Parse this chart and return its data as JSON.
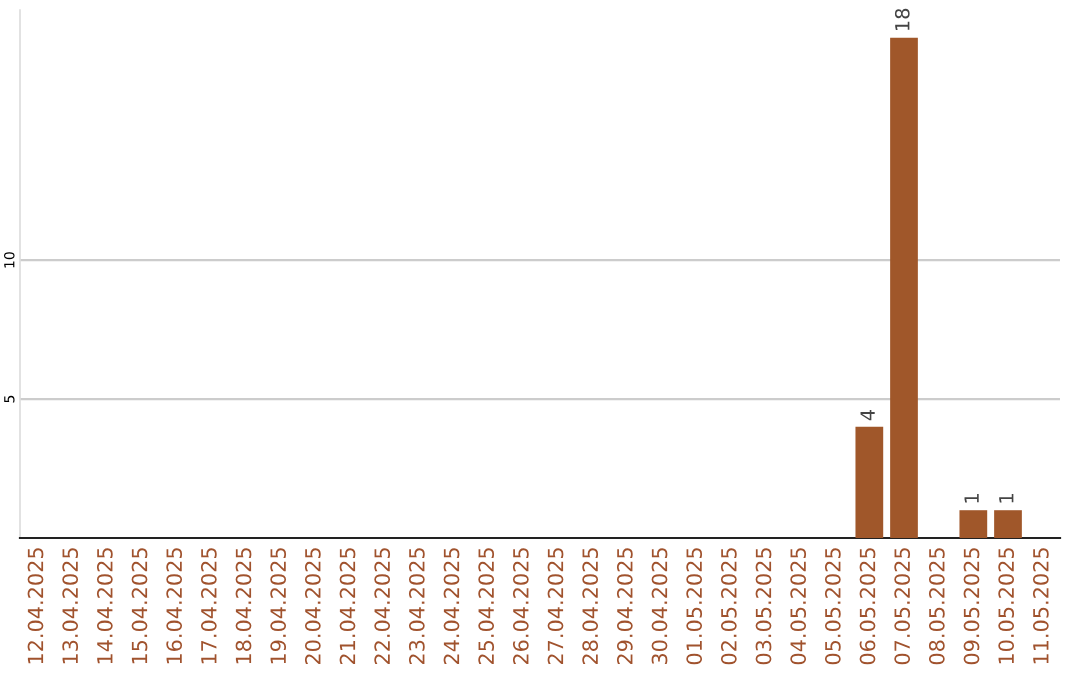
{
  "chart_data": {
    "type": "bar",
    "categories": [
      "12.04.2025",
      "13.04.2025",
      "14.04.2025",
      "15.04.2025",
      "16.04.2025",
      "17.04.2025",
      "18.04.2025",
      "19.04.2025",
      "20.04.2025",
      "21.04.2025",
      "22.04.2025",
      "23.04.2025",
      "24.04.2025",
      "25.04.2025",
      "26.04.2025",
      "27.04.2025",
      "28.04.2025",
      "29.04.2025",
      "30.04.2025",
      "01.05.2025",
      "02.05.2025",
      "03.05.2025",
      "04.05.2025",
      "05.05.2025",
      "06.05.2025",
      "07.05.2025",
      "08.05.2025",
      "09.05.2025",
      "10.05.2025",
      "11.05.2025"
    ],
    "values": [
      null,
      null,
      null,
      null,
      null,
      null,
      null,
      null,
      null,
      null,
      null,
      null,
      null,
      null,
      null,
      null,
      null,
      null,
      null,
      null,
      null,
      null,
      null,
      null,
      4,
      18,
      null,
      1,
      1,
      null
    ],
    "color": "#a0572a",
    "ylim": [
      0,
      19
    ],
    "yticks": [
      5,
      10
    ],
    "grid": "y",
    "data_labels": true
  }
}
